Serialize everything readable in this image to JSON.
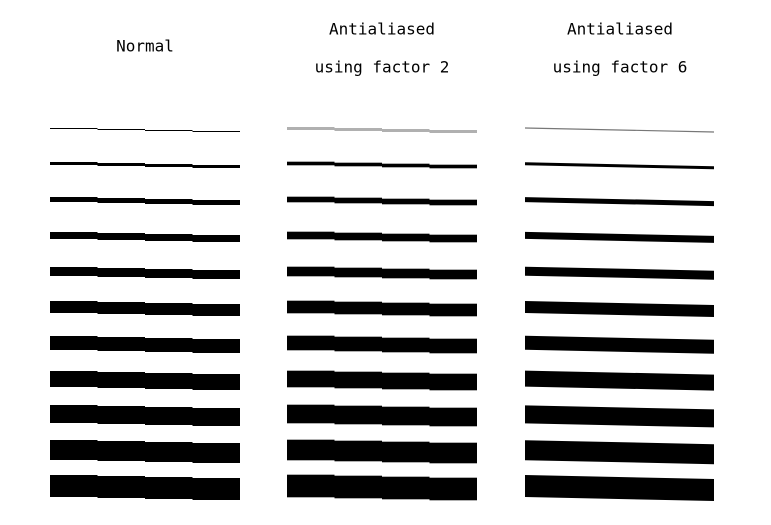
{
  "columns": [
    {
      "title": [
        "Normal"
      ]
    },
    {
      "title": [
        "Antialiased",
        "using factor 2"
      ]
    },
    {
      "title": [
        "Antialiased",
        "using factor 6"
      ]
    }
  ]
}
